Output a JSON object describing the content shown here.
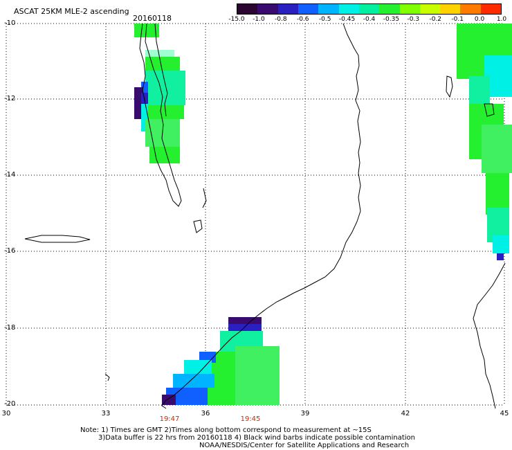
{
  "header": {
    "title": "ASCAT 25KM MLE-2 ascending",
    "date": "20160118"
  },
  "colorbar": {
    "labels": [
      "-15.0",
      "-1.0",
      "-0.8",
      "-0.6",
      "-0.5",
      "-0.45",
      "-0.4",
      "-0.35",
      "-0.3",
      "-0.2",
      "-0.1",
      "0.0",
      "1.0"
    ],
    "colors": [
      "#2b0630",
      "#3a0b6e",
      "#2a1fbf",
      "#1060ff",
      "#00b4ff",
      "#00f0e6",
      "#00f0a0",
      "#24f030",
      "#80ff00",
      "#c8ff00",
      "#ffd200",
      "#ff7a00",
      "#ff2a00"
    ]
  },
  "axes": {
    "lat_labels": [
      "-10",
      "-12",
      "-14",
      "-16",
      "-18",
      "-20"
    ],
    "lon_labels": [
      "30",
      "33",
      "36",
      "39",
      "42",
      "45"
    ],
    "lat_values": [
      -10,
      -12,
      -14,
      -16,
      -18,
      -20
    ],
    "lon_values": [
      30,
      33,
      36,
      39,
      42,
      45
    ]
  },
  "times": [
    "19:47",
    "19:45"
  ],
  "notes": [
    "Note: 1) Times are GMT 2)Times along bottom correspond to measurement at ~15S",
    "3)Data buffer is 22 hrs from 20160118 4) Black wind barbs indicate possible contamination",
    "NOAA/NESDIS/Center for Satellite Applications and Research"
  ]
}
